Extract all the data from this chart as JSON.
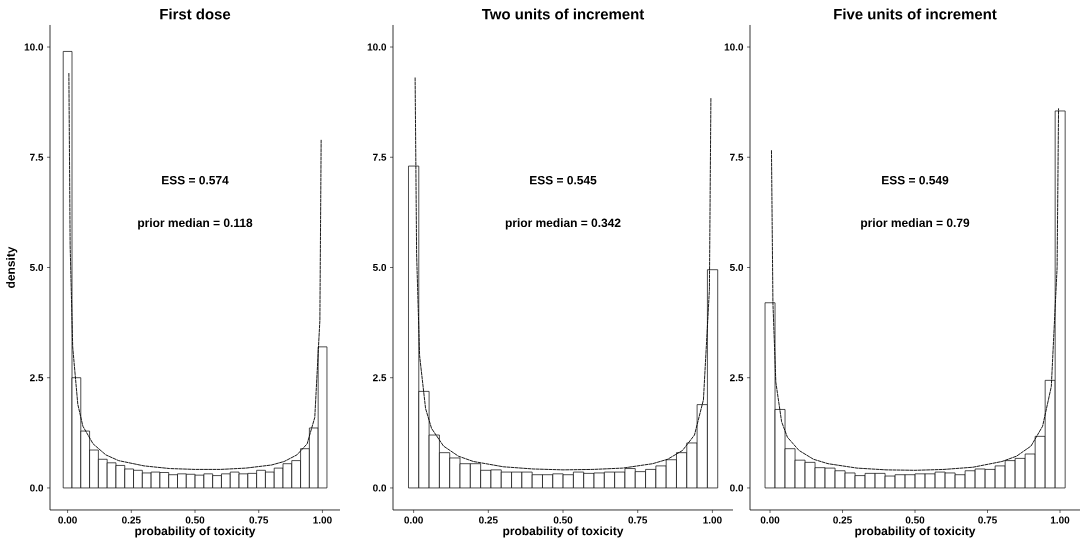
{
  "chart_data": [
    {
      "type": "histogram",
      "title": "First dose",
      "xlabel": "probability of toxicity",
      "ylabel": "density",
      "annotations": [
        "ESS = 0.574",
        "prior median = 0.118"
      ],
      "xlim": [
        -0.069,
        1.069
      ],
      "ylim": [
        -0.5,
        10.5
      ],
      "xticks": [
        {
          "value": 0,
          "label": "0.00"
        },
        {
          "value": 0.25,
          "label": "0.25"
        },
        {
          "value": 0.5,
          "label": "0.50"
        },
        {
          "value": 0.75,
          "label": "0.75"
        },
        {
          "value": 1,
          "label": "1.00"
        }
      ],
      "yticks": [
        {
          "value": 0,
          "label": "0.0"
        },
        {
          "value": 2.5,
          "label": "2.5"
        },
        {
          "value": 5,
          "label": "5.0"
        },
        {
          "value": 7.5,
          "label": "7.5"
        },
        {
          "value": 10,
          "label": "10.0"
        }
      ],
      "grid": false,
      "series": [
        {
          "color": "#000000",
          "bins": [
            -0.0172,
            0.0173,
            0.0518,
            0.0863,
            0.1208,
            0.1553,
            0.1898,
            0.2243,
            0.2588,
            0.2933,
            0.3278,
            0.3623,
            0.3968,
            0.4313,
            0.4658,
            0.5003,
            0.5348,
            0.5693,
            0.6038,
            0.6383,
            0.6728,
            0.7073,
            0.7418,
            0.7763,
            0.8108,
            0.8453,
            0.8798,
            0.9143,
            0.9488,
            0.9833,
            1.0178
          ],
          "values": [
            9.9,
            2.5,
            1.29,
            0.86,
            0.65,
            0.57,
            0.51,
            0.43,
            0.4,
            0.34,
            0.36,
            0.35,
            0.3,
            0.32,
            0.31,
            0.29,
            0.32,
            0.28,
            0.32,
            0.36,
            0.32,
            0.33,
            0.4,
            0.36,
            0.45,
            0.55,
            0.62,
            0.89,
            1.36,
            3.2
          ]
        },
        {
          "type": "line",
          "color": "#000000",
          "line_style": "dashed",
          "x": [
            0.005,
            0.01,
            0.02,
            0.04,
            0.06,
            0.1,
            0.15,
            0.2,
            0.3,
            0.4,
            0.5,
            0.6,
            0.7,
            0.8,
            0.85,
            0.9,
            0.94,
            0.97,
            0.99,
            0.995
          ],
          "values": [
            9.4,
            5.5,
            3.2,
            1.9,
            1.4,
            1.0,
            0.75,
            0.62,
            0.5,
            0.44,
            0.42,
            0.42,
            0.45,
            0.52,
            0.6,
            0.75,
            1.0,
            1.6,
            3.8,
            7.9
          ]
        }
      ]
    },
    {
      "type": "histogram",
      "title": "Two units of increment",
      "xlabel": "probability of toxicity",
      "annotations": [
        "ESS = 0.545",
        "prior median = 0.342"
      ],
      "xlim": [
        -0.069,
        1.069
      ],
      "ylim": [
        -0.5,
        10.5
      ],
      "xticks": [
        {
          "value": 0,
          "label": "0.00"
        },
        {
          "value": 0.25,
          "label": "0.25"
        },
        {
          "value": 0.5,
          "label": "0.50"
        },
        {
          "value": 0.75,
          "label": "0.75"
        },
        {
          "value": 1,
          "label": "1.00"
        }
      ],
      "yticks": [
        {
          "value": 0,
          "label": "0.0"
        },
        {
          "value": 2.5,
          "label": "2.5"
        },
        {
          "value": 5,
          "label": "5.0"
        },
        {
          "value": 7.5,
          "label": "7.5"
        },
        {
          "value": 10,
          "label": "10.0"
        }
      ],
      "grid": false,
      "series": [
        {
          "color": "#000000",
          "bins": [
            -0.0172,
            0.0173,
            0.0518,
            0.0863,
            0.1208,
            0.1553,
            0.1898,
            0.2243,
            0.2588,
            0.2933,
            0.3278,
            0.3623,
            0.3968,
            0.4313,
            0.4658,
            0.5003,
            0.5348,
            0.5693,
            0.6038,
            0.6383,
            0.6728,
            0.7073,
            0.7418,
            0.7763,
            0.8108,
            0.8453,
            0.8798,
            0.9143,
            0.9488,
            0.9833,
            1.0178
          ],
          "values": [
            7.3,
            2.19,
            1.2,
            0.8,
            0.68,
            0.55,
            0.55,
            0.4,
            0.41,
            0.36,
            0.36,
            0.36,
            0.3,
            0.3,
            0.32,
            0.3,
            0.36,
            0.33,
            0.34,
            0.36,
            0.36,
            0.44,
            0.37,
            0.42,
            0.5,
            0.64,
            0.8,
            1.02,
            1.89,
            4.95
          ]
        },
        {
          "type": "line",
          "color": "#000000",
          "line_style": "dashed",
          "x": [
            0.005,
            0.01,
            0.02,
            0.04,
            0.06,
            0.1,
            0.15,
            0.2,
            0.3,
            0.4,
            0.5,
            0.6,
            0.7,
            0.8,
            0.85,
            0.9,
            0.94,
            0.97,
            0.99,
            0.995
          ],
          "values": [
            9.3,
            5.3,
            3.0,
            1.8,
            1.35,
            0.95,
            0.72,
            0.6,
            0.48,
            0.43,
            0.41,
            0.42,
            0.45,
            0.55,
            0.65,
            0.85,
            1.2,
            2.0,
            4.5,
            8.85
          ]
        }
      ]
    },
    {
      "type": "histogram",
      "title": "Five units of increment",
      "xlabel": "probability of toxicity",
      "annotations": [
        "ESS = 0.549",
        "prior median = 0.79"
      ],
      "xlim": [
        -0.069,
        1.069
      ],
      "ylim": [
        -0.5,
        10.5
      ],
      "xticks": [
        {
          "value": 0,
          "label": "0.00"
        },
        {
          "value": 0.25,
          "label": "0.25"
        },
        {
          "value": 0.5,
          "label": "0.50"
        },
        {
          "value": 0.75,
          "label": "0.75"
        },
        {
          "value": 1,
          "label": "1.00"
        }
      ],
      "yticks": [
        {
          "value": 0,
          "label": "0.0"
        },
        {
          "value": 2.5,
          "label": "2.5"
        },
        {
          "value": 5,
          "label": "5.0"
        },
        {
          "value": 7.5,
          "label": "7.5"
        },
        {
          "value": 10,
          "label": "10.0"
        }
      ],
      "grid": false,
      "series": [
        {
          "color": "#000000",
          "bins": [
            -0.0172,
            0.0173,
            0.0518,
            0.0863,
            0.1208,
            0.1553,
            0.1898,
            0.2243,
            0.2588,
            0.2933,
            0.3278,
            0.3623,
            0.3968,
            0.4313,
            0.4658,
            0.5003,
            0.5348,
            0.5693,
            0.6038,
            0.6383,
            0.6728,
            0.7073,
            0.7418,
            0.7763,
            0.8108,
            0.8453,
            0.8798,
            0.9143,
            0.9488,
            0.9833,
            1.0178
          ],
          "values": [
            4.2,
            1.78,
            0.89,
            0.63,
            0.58,
            0.46,
            0.45,
            0.39,
            0.34,
            0.28,
            0.33,
            0.33,
            0.27,
            0.3,
            0.3,
            0.32,
            0.32,
            0.36,
            0.34,
            0.3,
            0.39,
            0.43,
            0.42,
            0.5,
            0.62,
            0.67,
            0.77,
            1.17,
            2.44,
            8.55
          ]
        },
        {
          "type": "line",
          "color": "#000000",
          "line_style": "dashed",
          "x": [
            0.005,
            0.01,
            0.02,
            0.04,
            0.06,
            0.1,
            0.15,
            0.2,
            0.3,
            0.4,
            0.5,
            0.6,
            0.7,
            0.8,
            0.85,
            0.9,
            0.94,
            0.97,
            0.99,
            0.995
          ],
          "values": [
            7.65,
            4.2,
            2.4,
            1.5,
            1.15,
            0.85,
            0.65,
            0.55,
            0.45,
            0.41,
            0.4,
            0.42,
            0.47,
            0.6,
            0.72,
            0.95,
            1.4,
            2.3,
            5.0,
            8.6
          ]
        }
      ]
    }
  ]
}
